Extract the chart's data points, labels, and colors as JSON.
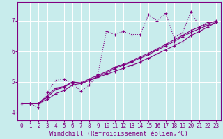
{
  "xlabel": "Windchill (Refroidissement éolien,°C)",
  "bg_color": "#c8ecec",
  "line_color": "#800080",
  "grid_color": "#ffffff",
  "xlim": [
    -0.5,
    23.5
  ],
  "ylim": [
    3.75,
    7.6
  ],
  "yticks": [
    4,
    5,
    6,
    7
  ],
  "xticks": [
    0,
    1,
    2,
    3,
    4,
    5,
    6,
    7,
    8,
    9,
    10,
    11,
    12,
    13,
    14,
    15,
    16,
    17,
    18,
    19,
    20,
    21,
    22,
    23
  ],
  "series1": [
    4.3,
    4.3,
    4.15,
    4.65,
    5.05,
    5.1,
    4.95,
    4.7,
    4.9,
    5.25,
    6.65,
    6.55,
    6.65,
    6.55,
    6.55,
    7.2,
    7.0,
    7.25,
    6.45,
    6.6,
    7.3,
    6.8,
    6.95,
    6.95
  ],
  "series2": [
    4.3,
    4.3,
    4.3,
    4.55,
    4.8,
    4.85,
    5.0,
    4.95,
    5.05,
    5.15,
    5.25,
    5.35,
    5.45,
    5.55,
    5.65,
    5.78,
    5.92,
    6.05,
    6.18,
    6.32,
    6.52,
    6.65,
    6.8,
    6.95
  ],
  "series3": [
    4.3,
    4.3,
    4.3,
    4.42,
    4.62,
    4.72,
    4.9,
    4.95,
    5.05,
    5.18,
    5.3,
    5.44,
    5.55,
    5.65,
    5.78,
    5.9,
    6.04,
    6.18,
    6.32,
    6.48,
    6.62,
    6.74,
    6.85,
    6.95
  ],
  "series4": [
    4.3,
    4.3,
    4.3,
    4.5,
    4.75,
    4.82,
    5.0,
    4.97,
    5.1,
    5.22,
    5.34,
    5.48,
    5.58,
    5.68,
    5.82,
    5.94,
    6.08,
    6.22,
    6.38,
    6.52,
    6.68,
    6.8,
    6.9,
    7.0
  ],
  "markersize": 3,
  "linewidth": 0.8,
  "tick_fontsize": 5.5,
  "xlabel_fontsize": 6.5
}
